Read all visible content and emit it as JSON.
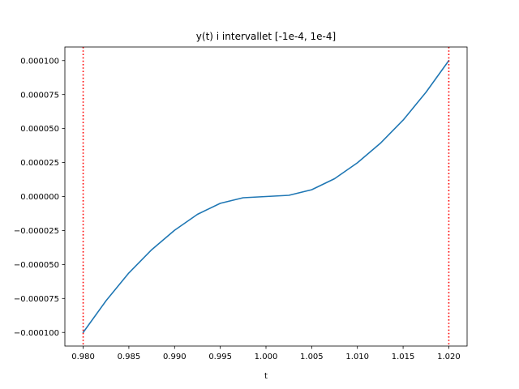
{
  "chart_data": {
    "type": "line",
    "title": "y(t) i intervallet [-1e-4, 1e-4]",
    "xlabel": "t",
    "ylabel": "",
    "xlim": [
      0.978,
      1.022
    ],
    "ylim": [
      -0.00011,
      0.00011
    ],
    "xticks": [
      0.98,
      0.985,
      0.99,
      0.995,
      1.0,
      1.005,
      1.01,
      1.015,
      1.02
    ],
    "xtick_labels": [
      "0.980",
      "0.985",
      "0.990",
      "0.995",
      "1.000",
      "1.005",
      "1.010",
      "1.015",
      "1.020"
    ],
    "yticks": [
      -0.0001,
      -7.5e-05,
      -5e-05,
      -2.5e-05,
      0,
      2.5e-05,
      5e-05,
      7.5e-05,
      0.0001
    ],
    "ytick_labels": [
      "−0.000100",
      "−0.000075",
      "−0.000050",
      "−0.000025",
      "0.000000",
      "0.000025",
      "0.000050",
      "0.000075",
      "0.000100"
    ],
    "grid": false,
    "series": [
      {
        "color": "#1f77b4",
        "x": [
          0.98,
          0.9825,
          0.985,
          0.9875,
          0.99,
          0.9925,
          0.995,
          0.9975,
          1.0,
          1.0025,
          1.005,
          1.0075,
          1.01,
          1.0125,
          1.015,
          1.0175,
          1.02
        ],
        "y": [
          -0.0001,
          -7.67e-05,
          -5.62e-05,
          -3.91e-05,
          -2.48e-05,
          -1.31e-05,
          -5e-06,
          -9e-07,
          0,
          9e-07,
          5e-06,
          1.31e-05,
          2.48e-05,
          3.91e-05,
          5.62e-05,
          7.67e-05,
          0.0001
        ]
      }
    ],
    "vlines": [
      {
        "x": 0.98,
        "color": "#ff0000",
        "style": "dotted"
      },
      {
        "x": 1.02,
        "color": "#ff0000",
        "style": "dotted"
      }
    ]
  }
}
